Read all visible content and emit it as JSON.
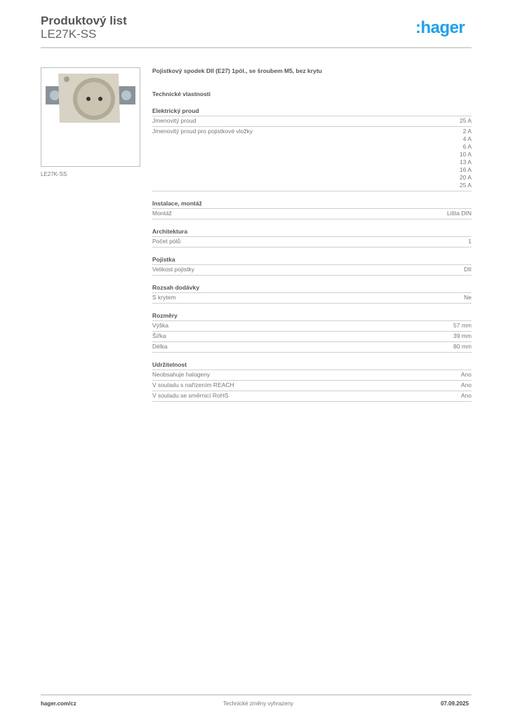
{
  "header": {
    "title": "Produktový list",
    "subtitle": "LE27K-SS",
    "logo": ":hager",
    "brand_color": "#1ea1e6"
  },
  "product": {
    "image_caption": "LE27K-SS",
    "description": "Pojistkový spodek DII (E27) 1pól., se šroubem M5, bez krytu",
    "section_title": "Technické vlastnosti"
  },
  "sections": [
    {
      "title": "Elektrický proud",
      "rows": [
        {
          "label": "Jmenovitý proud",
          "values": [
            "25 A"
          ]
        },
        {
          "label": "Jmenovitý proud pro pojistkové vložky",
          "values": [
            "2 A",
            "4 A",
            "6 A",
            "10 A",
            "13 A",
            "16 A",
            "20 A",
            "25 A"
          ]
        }
      ]
    },
    {
      "title": "Instalace, montáž",
      "rows": [
        {
          "label": "Montáž",
          "values": [
            "Lišta DIN"
          ]
        }
      ]
    },
    {
      "title": "Architektura",
      "rows": [
        {
          "label": "Počet pólů",
          "values": [
            "1"
          ]
        }
      ]
    },
    {
      "title": "Pojistka",
      "rows": [
        {
          "label": "Velikost pojistky",
          "values": [
            "DII"
          ]
        }
      ]
    },
    {
      "title": "Rozsah dodávky",
      "rows": [
        {
          "label": "S krytem",
          "values": [
            "Ne"
          ]
        }
      ]
    },
    {
      "title": "Rozměry",
      "rows": [
        {
          "label": "Výška",
          "values": [
            "57 mm"
          ]
        },
        {
          "label": "Šířka",
          "values": [
            "39 mm"
          ]
        },
        {
          "label": "Délka",
          "values": [
            "80 mm"
          ]
        }
      ]
    },
    {
      "title": "Udržitelnost",
      "rows": [
        {
          "label": "Neobsahuje halogeny",
          "values": [
            "Ano"
          ]
        },
        {
          "label": "V souladu s nařízením REACH",
          "values": [
            "Ano"
          ]
        },
        {
          "label": "V souladu se směrnicí RoHS",
          "values": [
            "Ano"
          ]
        }
      ]
    }
  ],
  "footer": {
    "website": "hager.com/cz",
    "note": "Technické změny vyhrazeny",
    "date": "07.09.2025"
  }
}
